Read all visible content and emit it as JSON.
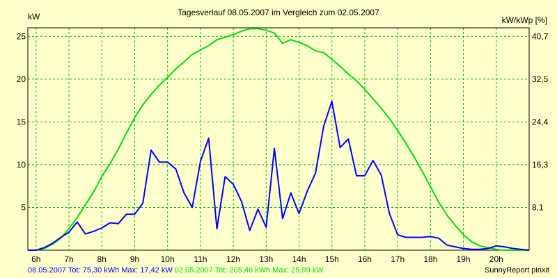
{
  "chart_data": {
    "type": "line",
    "title": "Tagesverlauf 08.05.2007 im Vergleich zum 02.05.2007",
    "ylabel_left": "kW",
    "ylabel_right": "kW/kWp [%]",
    "xlim": [
      5.75,
      21.0
    ],
    "ylim": [
      0,
      26
    ],
    "x_ticks": [
      6,
      7,
      8,
      9,
      10,
      11,
      12,
      13,
      14,
      15,
      16,
      17,
      18,
      19,
      20
    ],
    "x_tick_labels": [
      "6h",
      "7h",
      "8h",
      "9h",
      "10h",
      "11h",
      "12h",
      "13h",
      "14h",
      "15h",
      "16h",
      "17h",
      "18h",
      "19h",
      "20h"
    ],
    "y_ticks": [
      5,
      10,
      15,
      20,
      25
    ],
    "y_tick_labels": [
      "5",
      "10",
      "15",
      "20",
      "25"
    ],
    "y2_ticks": [
      5,
      10,
      15,
      20,
      25
    ],
    "y2_tick_labels": [
      "8,1",
      "16,3",
      "24,4",
      "32,5",
      "40,7"
    ],
    "grid": true,
    "series": [
      {
        "name": "08.05.2007",
        "color": "#0000ff",
        "points": [
          [
            5.75,
            0
          ],
          [
            6,
            0
          ],
          [
            6.25,
            0.3
          ],
          [
            6.5,
            0.8
          ],
          [
            6.75,
            1.5
          ],
          [
            7,
            2.1
          ],
          [
            7.25,
            3.3
          ],
          [
            7.5,
            1.9
          ],
          [
            7.75,
            2.2
          ],
          [
            8,
            2.6
          ],
          [
            8.25,
            3.2
          ],
          [
            8.5,
            3.1
          ],
          [
            8.75,
            4.2
          ],
          [
            9,
            4.2
          ],
          [
            9.25,
            5.5
          ],
          [
            9.5,
            11.7
          ],
          [
            9.75,
            10.3
          ],
          [
            10,
            10.3
          ],
          [
            10.25,
            9.5
          ],
          [
            10.5,
            6.7
          ],
          [
            10.75,
            5
          ],
          [
            11,
            10.4
          ],
          [
            11.25,
            13.1
          ],
          [
            11.5,
            2.5
          ],
          [
            11.75,
            8.6
          ],
          [
            12,
            7.7
          ],
          [
            12.25,
            5.7
          ],
          [
            12.5,
            2.3
          ],
          [
            12.75,
            4.8
          ],
          [
            13,
            2.7
          ],
          [
            13.25,
            11.9
          ],
          [
            13.5,
            3.7
          ],
          [
            13.75,
            6.7
          ],
          [
            14,
            4.3
          ],
          [
            14.25,
            6.9
          ],
          [
            14.5,
            9
          ],
          [
            14.75,
            14.5
          ],
          [
            15,
            17.4
          ],
          [
            15.25,
            12
          ],
          [
            15.5,
            13
          ],
          [
            15.75,
            8.7
          ],
          [
            16,
            8.7
          ],
          [
            16.25,
            10.5
          ],
          [
            16.5,
            8.8
          ],
          [
            16.75,
            4.3
          ],
          [
            17,
            1.8
          ],
          [
            17.25,
            1.5
          ],
          [
            17.5,
            1.5
          ],
          [
            17.75,
            1.5
          ],
          [
            18,
            1.6
          ],
          [
            18.25,
            1.4
          ],
          [
            18.5,
            0.6
          ],
          [
            18.75,
            0.4
          ],
          [
            19,
            0.2
          ],
          [
            19.25,
            0.1
          ],
          [
            19.5,
            0.1
          ],
          [
            19.75,
            0.2
          ],
          [
            20,
            0.5
          ],
          [
            20.25,
            0.4
          ],
          [
            20.5,
            0.2
          ],
          [
            20.75,
            0.1
          ],
          [
            21,
            0
          ]
        ]
      },
      {
        "name": "02.05.2007",
        "color": "#00dd00",
        "points": [
          [
            5.75,
            0
          ],
          [
            6,
            0
          ],
          [
            6.25,
            0.2
          ],
          [
            6.5,
            0.7
          ],
          [
            6.75,
            1.4
          ],
          [
            7,
            2.5
          ],
          [
            7.25,
            3.8
          ],
          [
            7.5,
            5.3
          ],
          [
            7.75,
            6.8
          ],
          [
            8,
            8.6
          ],
          [
            8.25,
            10.1
          ],
          [
            8.5,
            11.8
          ],
          [
            8.75,
            13.7
          ],
          [
            9,
            15.5
          ],
          [
            9.25,
            17
          ],
          [
            9.5,
            18.2
          ],
          [
            9.75,
            19.3
          ],
          [
            10,
            20.2
          ],
          [
            10.25,
            21.2
          ],
          [
            10.5,
            22
          ],
          [
            10.75,
            22.9
          ],
          [
            11,
            23.4
          ],
          [
            11.25,
            23.9
          ],
          [
            11.5,
            24.6
          ],
          [
            11.75,
            24.9
          ],
          [
            12,
            25.2
          ],
          [
            12.25,
            25.6
          ],
          [
            12.5,
            25.9
          ],
          [
            12.75,
            25.9
          ],
          [
            13,
            25.7
          ],
          [
            13.25,
            25.4
          ],
          [
            13.5,
            24.2
          ],
          [
            13.75,
            24.6
          ],
          [
            14,
            24.3
          ],
          [
            14.25,
            23.9
          ],
          [
            14.5,
            23.3
          ],
          [
            14.75,
            23.1
          ],
          [
            15,
            22.3
          ],
          [
            15.25,
            21.5
          ],
          [
            15.5,
            20.6
          ],
          [
            15.75,
            19.8
          ],
          [
            16,
            18.8
          ],
          [
            16.25,
            17.7
          ],
          [
            16.5,
            16.6
          ],
          [
            16.75,
            15.4
          ],
          [
            17,
            14
          ],
          [
            17.25,
            12.5
          ],
          [
            17.5,
            10.9
          ],
          [
            17.75,
            9.2
          ],
          [
            18,
            7.4
          ],
          [
            18.25,
            5.6
          ],
          [
            18.5,
            4.1
          ],
          [
            18.75,
            2.9
          ],
          [
            19,
            1.8
          ],
          [
            19.25,
            1
          ],
          [
            19.5,
            0.5
          ],
          [
            19.75,
            0.3
          ],
          [
            20,
            0.1
          ],
          [
            20.25,
            0
          ],
          [
            20.5,
            0
          ],
          [
            21,
            0
          ]
        ]
      }
    ]
  },
  "footer": {
    "series1_text": "08.05.2007 Tot: 75,30 kWh Max: 17,42 kW",
    "series2_text": "02.05.2007 Tot: 205,46 kWh Max: 25,99 kW"
  },
  "credit": "SunnyReport pinxit"
}
